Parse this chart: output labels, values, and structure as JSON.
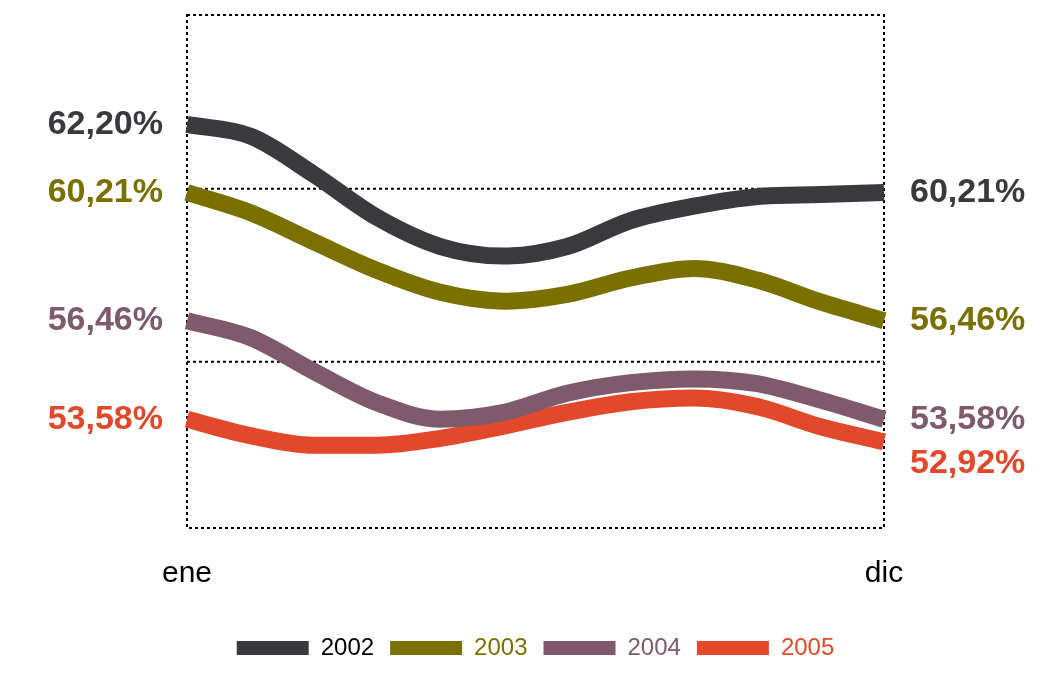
{
  "chart_data": {
    "type": "line",
    "categories": [
      "ene",
      null,
      null,
      null,
      null,
      null,
      null,
      null,
      null,
      null,
      null,
      "dic"
    ],
    "ylim": [
      50.4,
      65.4
    ],
    "legend": "bottom",
    "tick_labels": "x",
    "ref_lines": [
      {
        "axis": "y",
        "value": 60.32,
        "color": "#000000",
        "line_style": "dotted"
      },
      {
        "axis": "y",
        "value": 55.26,
        "color": "#000000",
        "line_style": "dotted"
      }
    ],
    "series": [
      {
        "name": "2002",
        "color": "#3a3a3e",
        "values": [
          62.2,
          61.86,
          60.74,
          59.48,
          58.63,
          58.35,
          58.63,
          59.39,
          59.81,
          60.09,
          60.15,
          60.21
        ],
        "value_labels": [
          "62,20%",
          null,
          null,
          null,
          null,
          null,
          null,
          null,
          null,
          null,
          null,
          "60,21%"
        ]
      },
      {
        "name": "2003",
        "color": "#7a7000",
        "values": [
          60.21,
          59.62,
          58.77,
          57.93,
          57.29,
          57.03,
          57.23,
          57.71,
          57.99,
          57.65,
          57.01,
          56.46
        ],
        "value_labels": [
          "60,21%",
          null,
          null,
          null,
          null,
          null,
          null,
          null,
          null,
          null,
          null,
          "56,46%"
        ]
      },
      {
        "name": "2004",
        "color": "#7e5a6c",
        "values": [
          56.46,
          55.97,
          54.98,
          54.06,
          53.58,
          53.78,
          54.34,
          54.65,
          54.76,
          54.62,
          54.14,
          53.58
        ],
        "value_labels": [
          "56,46%",
          null,
          null,
          null,
          null,
          null,
          null,
          null,
          null,
          null,
          null,
          "53,58%"
        ]
      },
      {
        "name": "2005",
        "color": "#e2482a",
        "values": [
          53.58,
          53.1,
          52.82,
          52.82,
          53.02,
          53.38,
          53.78,
          54.09,
          54.2,
          53.95,
          53.36,
          52.92
        ],
        "value_labels": [
          "53,58%",
          null,
          null,
          null,
          null,
          null,
          null,
          null,
          null,
          null,
          null,
          "52,92%"
        ]
      }
    ]
  }
}
